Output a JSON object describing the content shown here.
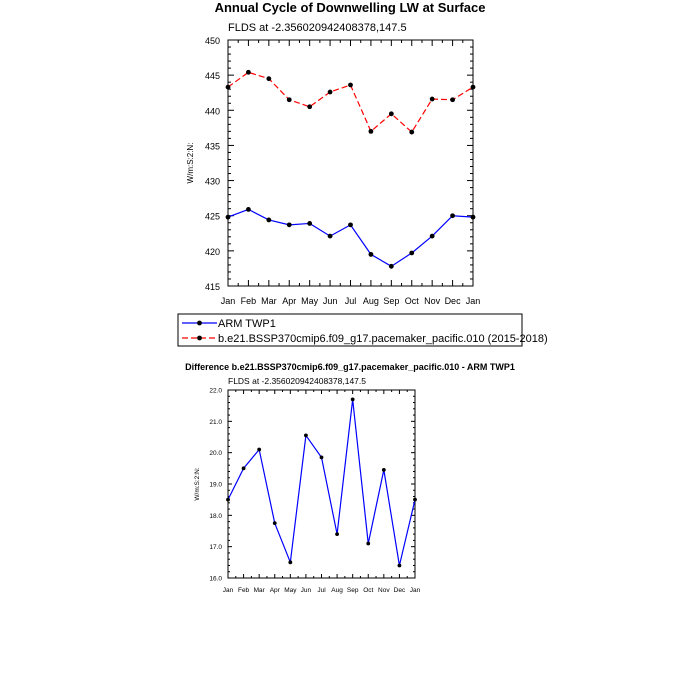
{
  "chart_data": [
    {
      "type": "line",
      "title": "Annual Cycle of Downwelling LW at Surface",
      "subtitle": "FLDS at -2.356020942408378,147.5",
      "ylabel": "W/m:S:2:N:",
      "xlabel": "",
      "categories": [
        "Jan",
        "Feb",
        "Mar",
        "Apr",
        "May",
        "Jun",
        "Jul",
        "Aug",
        "Sep",
        "Oct",
        "Nov",
        "Dec",
        "Jan"
      ],
      "ylim": [
        415,
        450
      ],
      "yticks": [
        "415",
        "420",
        "425",
        "430",
        "435",
        "440",
        "445",
        "450"
      ],
      "series": [
        {
          "name": "ARM TWP1",
          "color": "#0000ff",
          "dash": "solid",
          "values": [
            424.8,
            425.9,
            424.4,
            423.7,
            423.9,
            422.1,
            423.7,
            419.5,
            417.8,
            419.7,
            422.1,
            425.0,
            424.8
          ]
        },
        {
          "name": "b.e21.BSSP370cmip6.f09_g17.pacemaker_pacific.010 (2015-2018)",
          "color": "#ff0000",
          "dash": "dashed",
          "values": [
            443.3,
            445.4,
            444.5,
            441.5,
            440.5,
            442.6,
            443.6,
            437.0,
            439.5,
            436.9,
            441.6,
            441.5,
            443.3
          ]
        }
      ],
      "legend_position": "bottom"
    },
    {
      "type": "line",
      "title": "Difference b.e21.BSSP370cmip6.f09_g17.pacemaker_pacific.010 - ARM TWP1",
      "subtitle": "FLDS at -2.356020942408378,147.5",
      "ylabel": "W/m:S:2:N:",
      "xlabel": "",
      "categories": [
        "Jan",
        "Feb",
        "Mar",
        "Apr",
        "May",
        "Jun",
        "Jul",
        "Aug",
        "Sep",
        "Oct",
        "Nov",
        "Dec",
        "Jan"
      ],
      "ylim": [
        16.0,
        22.0
      ],
      "yticks": [
        "16.0",
        "17.0",
        "18.0",
        "19.0",
        "20.0",
        "21.0",
        "22.0"
      ],
      "series": [
        {
          "color": "#0000ff",
          "dash": "solid",
          "values": [
            18.5,
            19.5,
            20.1,
            17.75,
            16.5,
            20.55,
            19.85,
            17.4,
            21.7,
            17.1,
            19.45,
            16.4,
            18.5
          ]
        }
      ]
    }
  ]
}
